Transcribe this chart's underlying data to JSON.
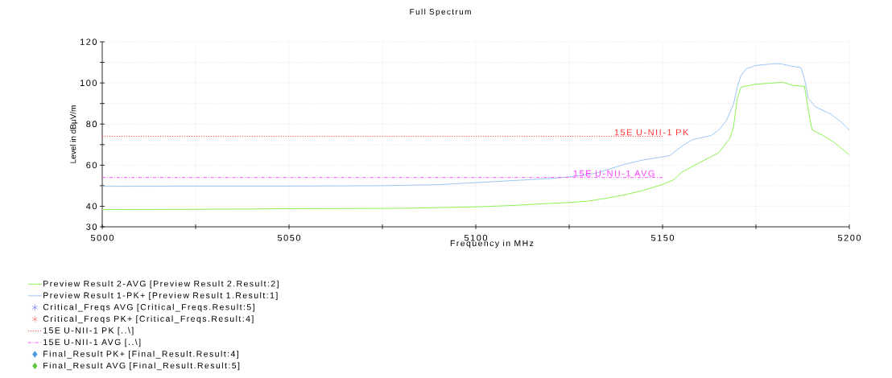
{
  "chart_data": {
    "type": "line",
    "title": "Full Spectrum",
    "xlabel": "Frequency in MHz",
    "ylabel": "Level in dBµV/m",
    "xlim": [
      5000,
      5200
    ],
    "ylim": [
      30,
      120
    ],
    "xticks": [
      5000,
      {
        "value": 5025,
        "label": null
      },
      5050,
      {
        "value": 5075,
        "label": null
      },
      5100,
      {
        "value": 5125,
        "label": null
      },
      5150,
      {
        "value": 5175,
        "label": null
      },
      5200
    ],
    "yticks": [
      30,
      40,
      {
        "value": 50,
        "label": null
      },
      60,
      {
        "value": 70,
        "label": null
      },
      80,
      {
        "value": 90,
        "label": null
      },
      100,
      {
        "value": 110,
        "label": null
      },
      120
    ],
    "grid": true,
    "legend": "bottom",
    "series": [
      {
        "name": "Preview Result 2-AVG   [Preview Result 2.Result:2]",
        "type": "line",
        "color": "#80f040",
        "x": [
          5000,
          5025,
          5050,
          5080,
          5100,
          5110,
          5120,
          5125,
          5130,
          5135,
          5140,
          5145,
          5150,
          5153,
          5155,
          5158,
          5160,
          5165,
          5168,
          5169,
          5170,
          5171,
          5175,
          5180,
          5182,
          5185,
          5188,
          5189,
          5190,
          5193,
          5196,
          5200
        ],
        "values": [
          38.4,
          38.5,
          38.8,
          39,
          39.7,
          40.4,
          41.4,
          41.8,
          42.5,
          43.9,
          45.6,
          47.8,
          50.6,
          52.9,
          56.4,
          59.4,
          61.3,
          66,
          73,
          78.6,
          92.5,
          98,
          99.4,
          100,
          100.4,
          98.8,
          98.3,
          87,
          77.2,
          74.4,
          71,
          65
        ]
      },
      {
        "name": "Preview Result 1-PK+   [Preview Result 1.Result:1]",
        "type": "line",
        "color": "#90c0f0",
        "x": [
          5000,
          5025,
          5050,
          5075,
          5090,
          5100,
          5110,
          5120,
          5125,
          5132,
          5140,
          5145,
          5150,
          5152,
          5155,
          5158,
          5163,
          5165,
          5167,
          5169,
          5170,
          5171,
          5172.5,
          5175,
          5180,
          5182,
          5185,
          5187,
          5188,
          5189,
          5191,
          5195,
          5198,
          5200
        ],
        "values": [
          49.7,
          49.8,
          49.8,
          50,
          50.5,
          51.5,
          52.5,
          53.5,
          54.3,
          56,
          60.5,
          62.6,
          64,
          64.7,
          69,
          72.4,
          74.4,
          77,
          81.4,
          89.7,
          98,
          103.6,
          107,
          108.5,
          109.4,
          109.2,
          108,
          107.5,
          102,
          92.5,
          88.3,
          84.9,
          80.7,
          77
        ]
      },
      {
        "name": "Critical_Freqs AVG   [Critical_Freqs.Result:5]",
        "type": "scatter",
        "marker": "star",
        "color": "#2020ff"
      },
      {
        "name": "Critical_Freqs PK+   [Critical_Freqs.Result:4]",
        "type": "scatter",
        "marker": "star",
        "color": "#ff2020"
      },
      {
        "name": "15E U-NII-1 PK   [..\\]",
        "type": "line",
        "line_style": "dotted",
        "color": "#ff3030",
        "x": [
          5000,
          5150
        ],
        "values": [
          74,
          74
        ]
      },
      {
        "name": "15E U-NII-1 AVG   [..\\]",
        "type": "line",
        "line_style": "dashdot",
        "color": "#ff40ff",
        "x": [
          5000,
          5150
        ],
        "values": [
          54,
          54
        ]
      },
      {
        "name": "Final_Result PK+   [Final_Result.Result:4]",
        "type": "scatter",
        "marker": "diamond",
        "color": "#4a9be0"
      },
      {
        "name": "Final_Result AVG   [Final_Result.Result:5]",
        "type": "scatter",
        "marker": "diamond",
        "color": "#60c840"
      }
    ],
    "annotations": [
      {
        "text": "15E U-NII-1 PK",
        "x": 5147,
        "y": 74
      },
      {
        "text": "15E U-NII-1 AVG",
        "x": 5137,
        "y": 54
      }
    ]
  }
}
